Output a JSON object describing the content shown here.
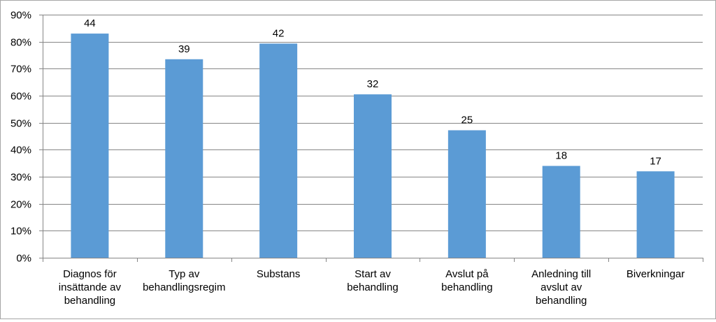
{
  "chart_data": {
    "type": "bar",
    "categories": [
      [
        "Diagnos för",
        "insättande av",
        "behandling"
      ],
      [
        "Typ av",
        "behandlingsregim"
      ],
      [
        "Substans"
      ],
      [
        "Start av",
        "behandling"
      ],
      [
        "Avslut på",
        "behandling"
      ],
      [
        "Anledning till",
        "avslut av",
        "behandling"
      ],
      [
        "Biverkningar"
      ]
    ],
    "values": [
      0.83,
      0.735,
      0.793,
      0.605,
      0.472,
      0.34,
      0.32
    ],
    "data_labels": [
      "44",
      "39",
      "42",
      "32",
      "25",
      "18",
      "17"
    ],
    "y_ticks": [
      "0%",
      "10%",
      "20%",
      "30%",
      "40%",
      "50%",
      "60%",
      "70%",
      "80%",
      "90%"
    ],
    "ylim": [
      0,
      0.9
    ],
    "grid": true,
    "legend": "none",
    "bar_color": "#5b9bd5",
    "grid_color": "#868686"
  }
}
